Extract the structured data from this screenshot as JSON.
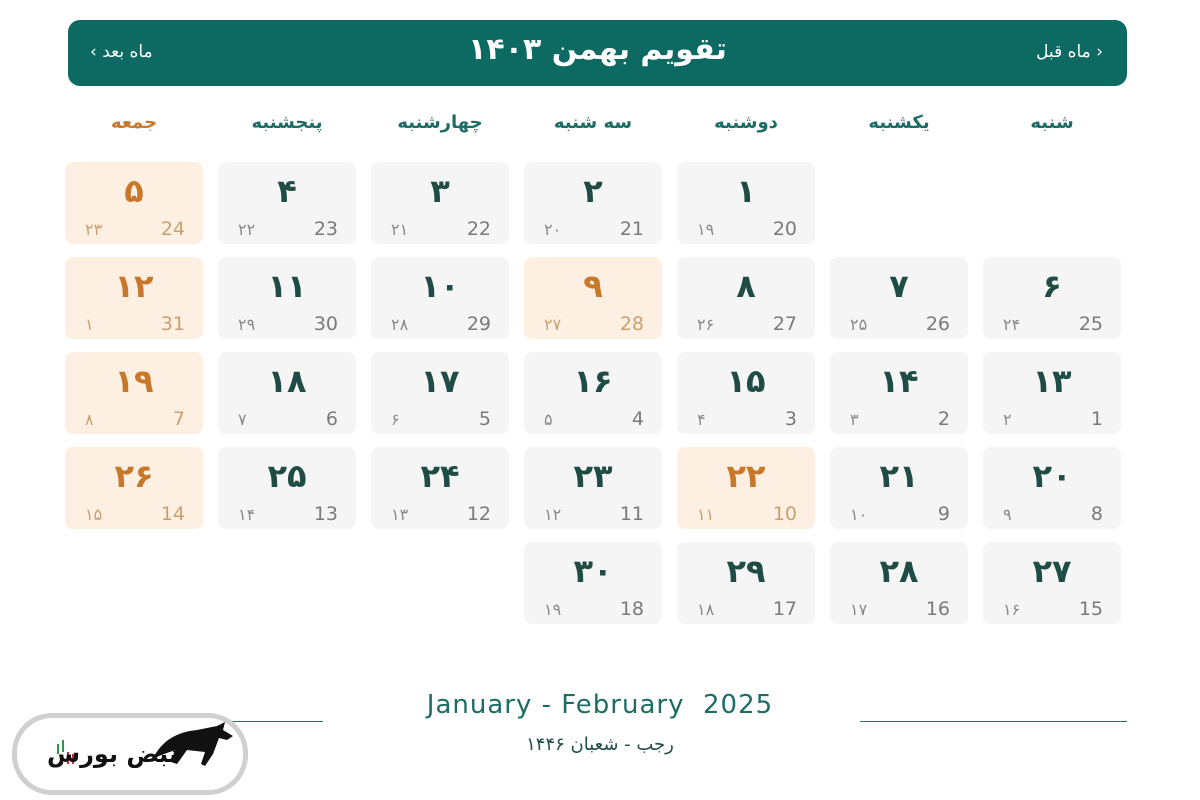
{
  "header": {
    "title": "تقویم بهمن ۱۴۰۳",
    "next_label": "ماه بعد ›",
    "prev_label": "‹ ماه قبل"
  },
  "weekdays": [
    "شنبه",
    "یکشنبه",
    "دوشنبه",
    "سه شنبه",
    "چهارشنبه",
    "پنجشنبه",
    "جمعه"
  ],
  "colors": {
    "header": "#0d6a62",
    "holiday": "#c8782a",
    "holiday_bg": "#fdf0e2",
    "cell_bg": "#f5f5f5"
  },
  "first_weekday_index": 2,
  "days": [
    {
      "day": "۱",
      "greg": "20",
      "hijri": "۱۹",
      "holiday": false
    },
    {
      "day": "۲",
      "greg": "21",
      "hijri": "۲۰",
      "holiday": false
    },
    {
      "day": "۳",
      "greg": "22",
      "hijri": "۲۱",
      "holiday": false
    },
    {
      "day": "۴",
      "greg": "23",
      "hijri": "۲۲",
      "holiday": false
    },
    {
      "day": "۵",
      "greg": "24",
      "hijri": "۲۳",
      "holiday": true
    },
    {
      "day": "۶",
      "greg": "25",
      "hijri": "۲۴",
      "holiday": false
    },
    {
      "day": "۷",
      "greg": "26",
      "hijri": "۲۵",
      "holiday": false
    },
    {
      "day": "۸",
      "greg": "27",
      "hijri": "۲۶",
      "holiday": false
    },
    {
      "day": "۹",
      "greg": "28",
      "hijri": "۲۷",
      "holiday": true
    },
    {
      "day": "۱۰",
      "greg": "29",
      "hijri": "۲۸",
      "holiday": false
    },
    {
      "day": "۱۱",
      "greg": "30",
      "hijri": "۲۹",
      "holiday": false
    },
    {
      "day": "۱۲",
      "greg": "31",
      "hijri": "۱",
      "holiday": true
    },
    {
      "day": "۱۳",
      "greg": "1",
      "hijri": "۲",
      "holiday": false
    },
    {
      "day": "۱۴",
      "greg": "2",
      "hijri": "۳",
      "holiday": false
    },
    {
      "day": "۱۵",
      "greg": "3",
      "hijri": "۴",
      "holiday": false
    },
    {
      "day": "۱۶",
      "greg": "4",
      "hijri": "۵",
      "holiday": false
    },
    {
      "day": "۱۷",
      "greg": "5",
      "hijri": "۶",
      "holiday": false
    },
    {
      "day": "۱۸",
      "greg": "6",
      "hijri": "۷",
      "holiday": false
    },
    {
      "day": "۱۹",
      "greg": "7",
      "hijri": "۸",
      "holiday": true
    },
    {
      "day": "۲۰",
      "greg": "8",
      "hijri": "۹",
      "holiday": false
    },
    {
      "day": "۲۱",
      "greg": "9",
      "hijri": "۱۰",
      "holiday": false
    },
    {
      "day": "۲۲",
      "greg": "10",
      "hijri": "۱۱",
      "holiday": true
    },
    {
      "day": "۲۳",
      "greg": "11",
      "hijri": "۱۲",
      "holiday": false
    },
    {
      "day": "۲۴",
      "greg": "12",
      "hijri": "۱۳",
      "holiday": false
    },
    {
      "day": "۲۵",
      "greg": "13",
      "hijri": "۱۴",
      "holiday": false
    },
    {
      "day": "۲۶",
      "greg": "14",
      "hijri": "۱۵",
      "holiday": true
    },
    {
      "day": "۲۷",
      "greg": "15",
      "hijri": "۱۶",
      "holiday": false
    },
    {
      "day": "۲۸",
      "greg": "16",
      "hijri": "۱۷",
      "holiday": false
    },
    {
      "day": "۲۹",
      "greg": "17",
      "hijri": "۱۸",
      "holiday": false
    },
    {
      "day": "۳۰",
      "greg": "18",
      "hijri": "۱۹",
      "holiday": false
    }
  ],
  "footer": {
    "gregorian_range": "January - February  2025",
    "hijri_range": "رجب - شعبان ۱۴۴۶"
  },
  "logo": {
    "text": "نبض بورس"
  }
}
